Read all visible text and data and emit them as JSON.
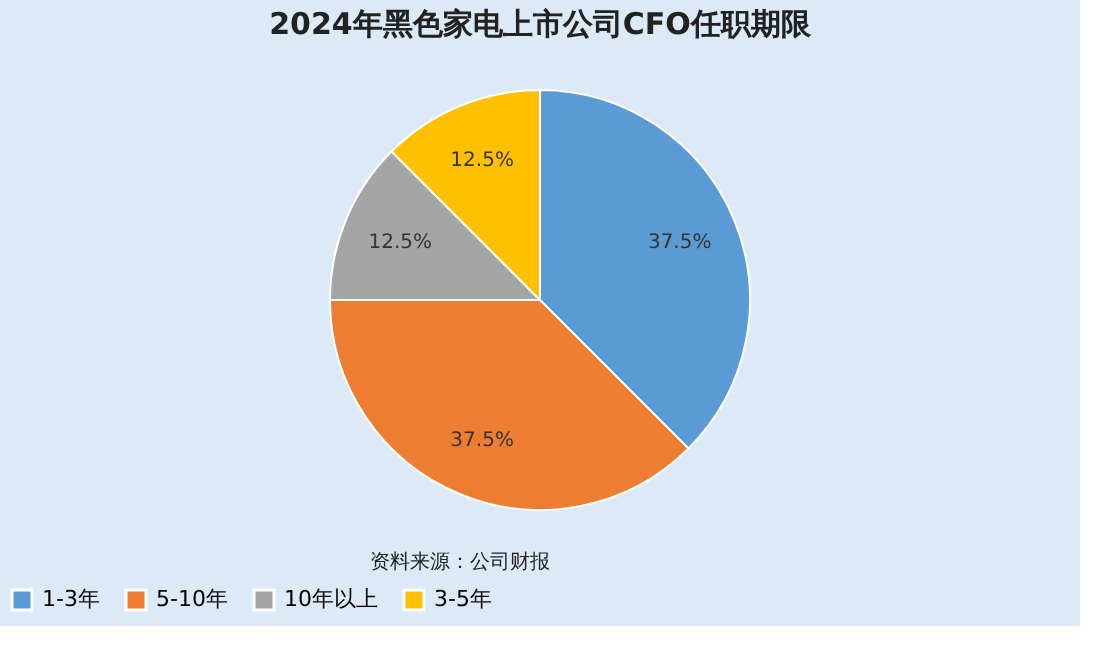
{
  "chart_data": {
    "type": "pie",
    "title": "2024年黑色家电上市公司CFO任职期限",
    "categories": [
      "1-3年",
      "5-10年",
      "10年以上",
      "3-5年"
    ],
    "values": [
      37.5,
      37.5,
      12.5,
      12.5
    ],
    "colors": [
      "#5b9bd5",
      "#ed7d31",
      "#a5a5a5",
      "#ffc000"
    ],
    "value_labels": [
      "37.5%",
      "37.5%",
      "12.5%",
      "12.5%"
    ],
    "legend": "bottom",
    "annotations": [
      "资料来源：公司财报"
    ]
  }
}
